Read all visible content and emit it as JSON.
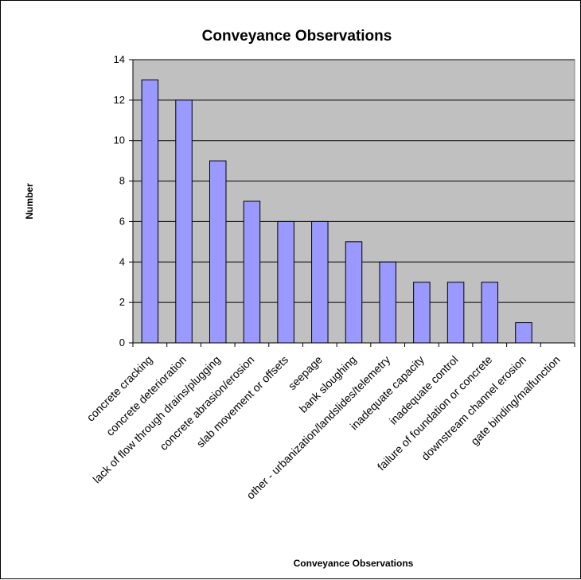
{
  "chart_data": {
    "type": "bar",
    "title": "Conveyance Observations",
    "xlabel": "Conveyance Observations",
    "ylabel": "Number",
    "categories": [
      "concrete cracking",
      "concrete deterioration",
      "lack of flow through drains/plugging",
      "concrete abrasion/erosion",
      "slab movement or offsets",
      "seepage",
      "bank sloughing",
      "other - urbanization/landslides/telemetry",
      "inadequate capacity",
      "inadequate control",
      "failure of foundation or concrete",
      "downstream channel erosion",
      "gate binding/malfunction"
    ],
    "values": [
      13,
      12,
      9,
      7,
      6,
      6,
      5,
      4,
      3,
      3,
      3,
      1,
      0
    ],
    "ylim": [
      0,
      14
    ],
    "yticks": [
      "0",
      "2",
      "4",
      "6",
      "8",
      "10",
      "12",
      "14"
    ],
    "grid": true,
    "legend": "none",
    "colors": {
      "bar_fill": "#9999ff",
      "plot_background": "#c0c0c0",
      "gridline": "#000000"
    }
  }
}
